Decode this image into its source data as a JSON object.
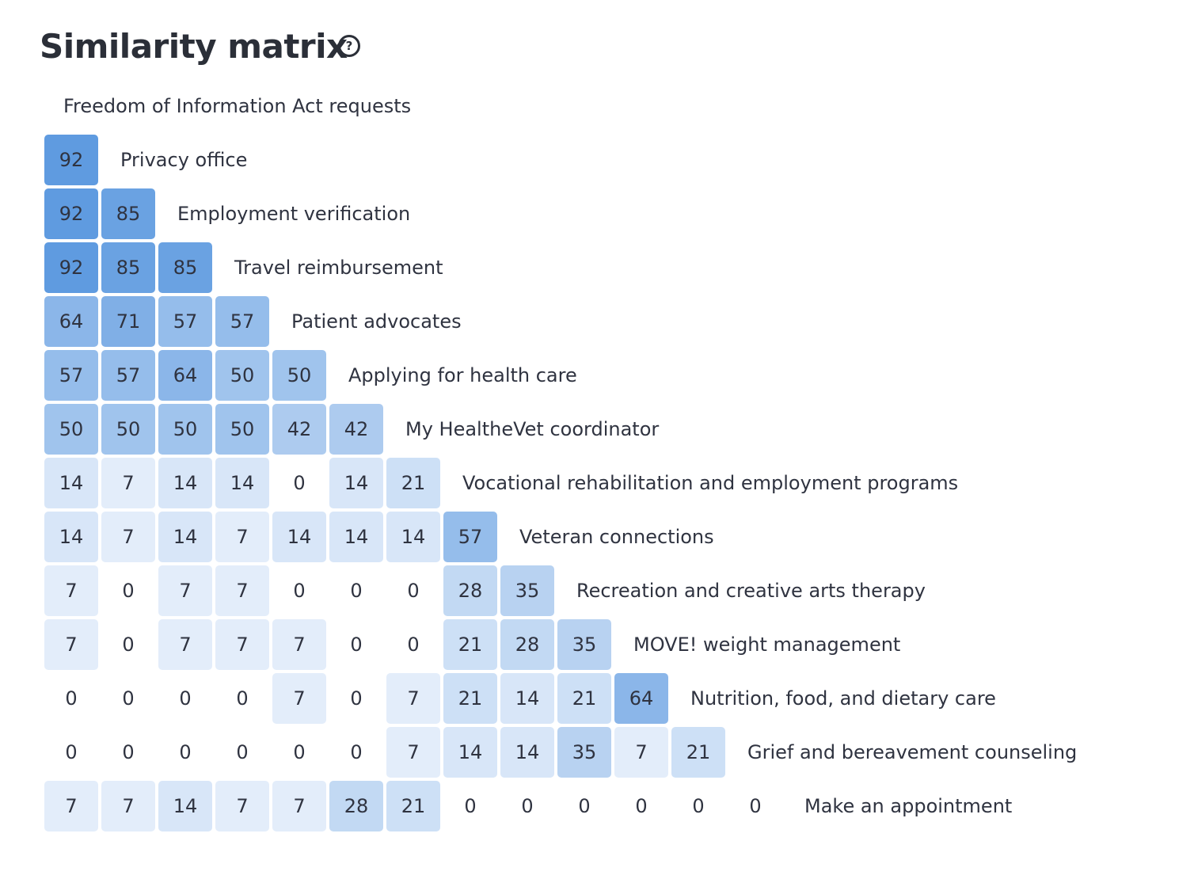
{
  "header": {
    "title": "Similarity matrix",
    "help_icon": "question-circle-icon"
  },
  "chart_data": {
    "type": "heatmap",
    "title": "Similarity matrix",
    "layout": "lower-triangular",
    "colors": {
      "high": "#5f9be0",
      "low": "#eef4fc",
      "text": "#2f3340"
    },
    "categories": [
      "Freedom of Information Act requests",
      "Privacy office",
      "Employment verification",
      "Travel reimbursement",
      "Patient advocates",
      "Applying for health care",
      "My HealtheVet coordinator",
      "Vocational rehabilitation and employment programs",
      "Veteran connections",
      "Recreation and creative arts therapy",
      "MOVE! weight management",
      "Nutrition, food, and dietary care",
      "Grief and bereavement counseling",
      "Make an appointment"
    ],
    "values": [
      [],
      [
        92
      ],
      [
        92,
        85
      ],
      [
        92,
        85,
        85
      ],
      [
        64,
        71,
        57,
        57
      ],
      [
        57,
        57,
        64,
        50,
        50
      ],
      [
        50,
        50,
        50,
        50,
        42,
        42
      ],
      [
        14,
        7,
        14,
        14,
        0,
        14,
        21
      ],
      [
        14,
        7,
        14,
        7,
        14,
        14,
        14,
        57
      ],
      [
        7,
        0,
        7,
        7,
        0,
        0,
        0,
        28,
        35
      ],
      [
        7,
        0,
        7,
        7,
        7,
        0,
        0,
        21,
        28,
        35
      ],
      [
        0,
        0,
        0,
        0,
        7,
        0,
        7,
        21,
        14,
        21,
        64
      ],
      [
        0,
        0,
        0,
        0,
        0,
        0,
        7,
        14,
        14,
        35,
        7,
        21
      ],
      [
        7,
        7,
        14,
        7,
        7,
        28,
        21,
        0,
        0,
        0,
        0,
        0,
        0
      ]
    ]
  }
}
